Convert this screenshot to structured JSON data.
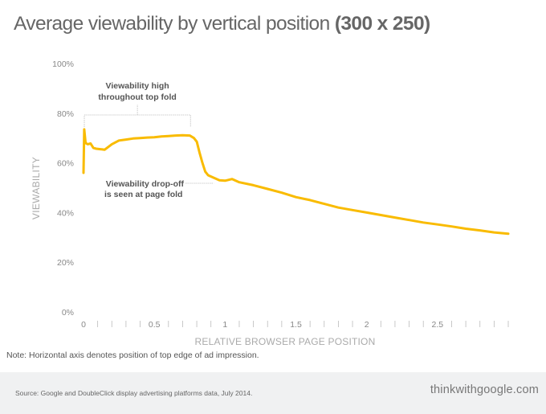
{
  "title": {
    "main": "Average viewability by vertical position ",
    "bold": "(300 x 250)"
  },
  "note": "Note: Horizontal axis denotes position of top edge of ad impression.",
  "footer": {
    "source": "Source: Google and DoubleClick display advertising platforms data, July 2014.",
    "brand": "thinkwithgoogle.com"
  },
  "chart_data": {
    "type": "line",
    "title": "Average viewability by vertical position (300 x 250)",
    "xlabel": "RELATIVE BROWSER PAGE POSITION",
    "ylabel": "VIEWABILITY",
    "xlim": [
      0,
      3.0
    ],
    "ylim": [
      0,
      100
    ],
    "grid": false,
    "line_color": "#f9bb00",
    "y_ticks": [
      {
        "value": 0,
        "label": "0%"
      },
      {
        "value": 20,
        "label": "20%"
      },
      {
        "value": 40,
        "label": "40%"
      },
      {
        "value": 60,
        "label": "60%"
      },
      {
        "value": 80,
        "label": "80%"
      },
      {
        "value": 100,
        "label": "100%"
      }
    ],
    "x_tick_labels": [
      {
        "value": 0,
        "label": "0"
      },
      {
        "value": 0.5,
        "label": "0.5"
      },
      {
        "value": 1,
        "label": "1"
      },
      {
        "value": 1.5,
        "label": "1.5"
      },
      {
        "value": 2,
        "label": "2"
      },
      {
        "value": 2.5,
        "label": "2.5"
      }
    ],
    "x_minor_step": 0.1,
    "series": [
      {
        "name": "Viewability",
        "x": [
          0,
          0.005,
          0.015,
          0.03,
          0.05,
          0.07,
          0.09,
          0.12,
          0.15,
          0.2,
          0.25,
          0.3,
          0.35,
          0.4,
          0.45,
          0.5,
          0.55,
          0.6,
          0.65,
          0.7,
          0.75,
          0.78,
          0.8,
          0.82,
          0.84,
          0.86,
          0.88,
          0.92,
          0.96,
          1.0,
          1.05,
          1.1,
          1.2,
          1.3,
          1.4,
          1.5,
          1.6,
          1.7,
          1.8,
          1.9,
          2.0,
          2.1,
          2.2,
          2.3,
          2.4,
          2.5,
          2.6,
          2.7,
          2.8,
          2.9,
          3.0
        ],
        "y": [
          56,
          73.5,
          68,
          67.5,
          67.8,
          66,
          65.7,
          65.5,
          65.3,
          67.5,
          69,
          69.4,
          69.8,
          70,
          70.2,
          70.3,
          70.6,
          70.8,
          71,
          71.1,
          71,
          70,
          68.5,
          64,
          60,
          56.5,
          55,
          54,
          53,
          52.8,
          53.5,
          52.2,
          51,
          49.5,
          48,
          46.2,
          45,
          43.5,
          42,
          41,
          40,
          39,
          38,
          37,
          36,
          35.2,
          34.4,
          33.5,
          32.8,
          32,
          31.5
        ]
      }
    ],
    "annotations": [
      {
        "id": "top-fold",
        "text_line1": "Viewability high",
        "text_line2": "throughout top fold",
        "x_range": [
          0,
          0.75
        ]
      },
      {
        "id": "page-fold",
        "text_line1": "Viewability drop-off",
        "text_line2": "is seen at page fold",
        "x_target": 0.92
      }
    ]
  }
}
